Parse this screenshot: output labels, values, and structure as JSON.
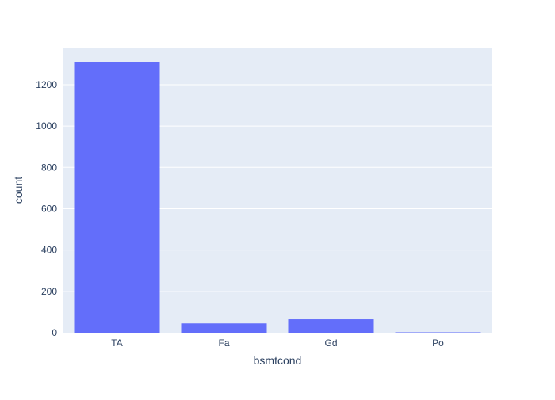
{
  "chart_data": {
    "type": "bar",
    "categories": [
      "TA",
      "Fa",
      "Gd",
      "Po"
    ],
    "values": [
      1311,
      45,
      65,
      2
    ],
    "xlabel": "bsmtcond",
    "ylabel": "count",
    "ylim": [
      0,
      1380
    ],
    "yticks": [
      0,
      200,
      400,
      600,
      800,
      1000,
      1200
    ],
    "grid": true,
    "colors": {
      "bar": "#636efa",
      "plot_bg": "#e5ecf6",
      "grid": "#ffffff",
      "text": "#2a3f5f"
    }
  }
}
